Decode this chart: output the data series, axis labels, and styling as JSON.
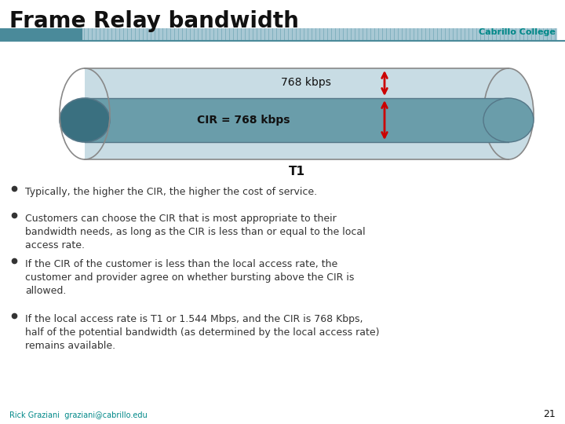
{
  "title": "Frame Relay bandwidth",
  "title_fontsize": 20,
  "title_fontweight": "bold",
  "bg_color": "#ffffff",
  "header_bar_color1": "#4a8a9a",
  "header_bar_color2": "#a8c8d4",
  "header_stripe_color": "#5a9aaa",
  "cabrillo_text": "Cabrillo College",
  "cabrillo_color": "#008888",
  "tube_outer_color": "#c8dce4",
  "tube_outer_edge": "#888888",
  "tube_inner_color": "#6a9daa",
  "tube_inner_edge": "#557788",
  "tube_left_cap_color": "#3a7080",
  "tube_label_768": "768 kbps",
  "tube_label_cir": "CIR = 768 kbps",
  "tube_label_t1": "T1",
  "arrow_color": "#cc0000",
  "bullet_color": "#333333",
  "bullet_points": [
    "Typically, the higher the CIR, the higher the cost of service.",
    "Customers can choose the CIR that is most appropriate to their\nbandwidth needs, as long as the CIR is less than or equal to the local\naccess rate.",
    "If the CIR of the customer is less than the local access rate, the\ncustomer and provider agree on whether bursting above the CIR is\nallowed.",
    "If the local access rate is T1 or 1.544 Mbps, and the CIR is 768 Kbps,\nhalf of the potential bandwidth (as determined by the local access rate)\nremains available."
  ],
  "bullet_fontsize": 9,
  "footer_text": "Rick Graziani  graziani@cabrillo.edu",
  "footer_color": "#008888",
  "footer_fontsize": 7,
  "page_number": "21",
  "page_number_fontsize": 9
}
